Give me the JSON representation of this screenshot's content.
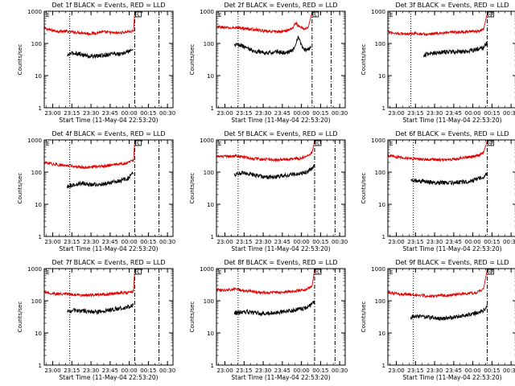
{
  "figure": {
    "background": "#ffffff",
    "axis_color": "#000000",
    "events_color": "#000000",
    "lld_color": "#e00000"
  },
  "chart_data": [
    {
      "type": "line",
      "panel": 1,
      "title": "Det 1f BLACK = Events, RED = LLD",
      "xlabel": "Start Time (11-May-04 22:53:20)",
      "ylabel": "Counts/sec",
      "x_ticks": [
        "23:00",
        "23:15",
        "23:30",
        "23:45",
        "00:00",
        "00:15",
        "00:30"
      ],
      "x_tick_minutes": [
        6.67,
        21.67,
        36.67,
        51.67,
        66.67,
        81.67,
        96.67
      ],
      "y_ticks": [
        "1",
        "10",
        "100",
        "1000"
      ],
      "y_scale": "log",
      "ylim": [
        1,
        1000
      ],
      "xlim_minutes": [
        0,
        101
      ],
      "series": [
        {
          "role": "LLD",
          "color": "#e00000",
          "x": [
            0,
            5,
            10,
            15,
            20,
            25,
            30,
            35,
            40,
            45,
            50,
            55,
            60,
            65,
            70,
            71
          ],
          "y": [
            300,
            260,
            240,
            240,
            230,
            220,
            215,
            200,
            210,
            230,
            220,
            210,
            215,
            230,
            240,
            950
          ]
        },
        {
          "role": "Events",
          "color": "#000000",
          "x": [
            18,
            20,
            25,
            30,
            35,
            40,
            45,
            50,
            55,
            60,
            65,
            70
          ],
          "y": [
            40,
            48,
            50,
            45,
            40,
            40,
            42,
            45,
            50,
            45,
            55,
            65
          ]
        }
      ],
      "markers": {
        "dotted_minutes": [
          20
        ],
        "dashdot_minutes": [
          71,
          90
        ],
        "bracket_labels": [
          "E",
          "S"
        ]
      }
    },
    {
      "type": "line",
      "panel": 2,
      "title": "Det 2f BLACK = Events, RED = LLD",
      "xlabel": "Start Time (11-May-04 22:53:20)",
      "ylabel": "Counts/sec",
      "x_ticks": [
        "23:00",
        "23:15",
        "23:30",
        "23:45",
        "00:00",
        "00:15",
        "00:30"
      ],
      "x_tick_minutes": [
        6.67,
        21.67,
        36.67,
        51.67,
        66.67,
        81.67,
        96.67
      ],
      "y_ticks": [
        "1",
        "10",
        "100",
        "1000"
      ],
      "y_scale": "log",
      "ylim": [
        1,
        1000
      ],
      "xlim_minutes": [
        0,
        101
      ],
      "series": [
        {
          "role": "LLD",
          "color": "#e00000",
          "x": [
            0,
            5,
            10,
            15,
            20,
            25,
            30,
            35,
            40,
            45,
            50,
            55,
            60,
            62,
            65,
            68,
            70,
            72,
            75
          ],
          "y": [
            320,
            320,
            300,
            310,
            300,
            280,
            270,
            250,
            230,
            240,
            230,
            250,
            300,
            450,
            320,
            300,
            280,
            320,
            900
          ]
        },
        {
          "role": "Events",
          "color": "#000000",
          "x": [
            14,
            16,
            20,
            25,
            30,
            35,
            40,
            45,
            50,
            55,
            60,
            62,
            64,
            66,
            68,
            70,
            72,
            74
          ],
          "y": [
            90,
            95,
            85,
            70,
            55,
            55,
            50,
            55,
            55,
            50,
            60,
            90,
            150,
            100,
            70,
            60,
            65,
            80
          ]
        }
      ],
      "markers": {
        "dotted_minutes": [
          17
        ],
        "dashdot_minutes": [
          75,
          90
        ],
        "bracket_labels": [
          "E",
          "S"
        ]
      }
    },
    {
      "type": "line",
      "panel": 3,
      "title": "Det 3f BLACK = Events, RED = LLD",
      "xlabel": "Start Time (11-May-04 22:53:20)",
      "ylabel": "Counts/sec",
      "x_ticks": [
        "23:00",
        "23:15",
        "23:30",
        "23:45",
        "00:00",
        "00:15",
        "00:30"
      ],
      "x_tick_minutes": [
        6.67,
        21.67,
        36.67,
        51.67,
        66.67,
        81.67,
        96.67
      ],
      "y_ticks": [
        "1",
        "10",
        "100",
        "1000"
      ],
      "y_scale": "log",
      "ylim": [
        1,
        1000
      ],
      "xlim_minutes": [
        0,
        101
      ],
      "series": [
        {
          "role": "LLD",
          "color": "#e00000",
          "x": [
            0,
            5,
            10,
            15,
            20,
            25,
            30,
            35,
            40,
            45,
            50,
            55,
            60,
            65,
            70,
            75,
            78
          ],
          "y": [
            230,
            210,
            200,
            200,
            210,
            200,
            190,
            200,
            210,
            210,
            220,
            220,
            230,
            240,
            240,
            260,
            900
          ]
        },
        {
          "role": "Events",
          "color": "#000000",
          "x": [
            28,
            30,
            35,
            40,
            45,
            50,
            55,
            60,
            65,
            70,
            75,
            78
          ],
          "y": [
            40,
            45,
            50,
            52,
            55,
            55,
            55,
            55,
            60,
            65,
            75,
            110
          ]
        }
      ],
      "markers": {
        "dotted_minutes": [
          18
        ],
        "dashdot_minutes": [
          78
        ],
        "bracket_labels": [
          "E",
          "S"
        ]
      }
    },
    {
      "type": "line",
      "panel": 4,
      "title": "Det 4f BLACK = Events, RED = LLD",
      "xlabel": "Start Time (11-May-04 22:53:20)",
      "ylabel": "Counts/sec",
      "x_ticks": [
        "23:00",
        "23:15",
        "23:30",
        "23:45",
        "00:00",
        "00:15",
        "00:30"
      ],
      "x_tick_minutes": [
        6.67,
        21.67,
        36.67,
        51.67,
        66.67,
        81.67,
        96.67
      ],
      "y_ticks": [
        "1",
        "10",
        "100",
        "1000"
      ],
      "y_scale": "log",
      "ylim": [
        1,
        1000
      ],
      "xlim_minutes": [
        0,
        101
      ],
      "series": [
        {
          "role": "LLD",
          "color": "#e00000",
          "x": [
            0,
            5,
            10,
            15,
            20,
            25,
            30,
            35,
            40,
            45,
            50,
            55,
            60,
            65,
            70,
            71
          ],
          "y": [
            200,
            180,
            170,
            160,
            160,
            150,
            140,
            140,
            150,
            150,
            160,
            170,
            180,
            190,
            230,
            950
          ]
        },
        {
          "role": "Events",
          "color": "#000000",
          "x": [
            18,
            20,
            25,
            30,
            35,
            40,
            45,
            50,
            55,
            60,
            65,
            70
          ],
          "y": [
            35,
            38,
            42,
            45,
            42,
            40,
            42,
            45,
            50,
            55,
            60,
            90
          ]
        }
      ],
      "markers": {
        "dotted_minutes": [
          20
        ],
        "dashdot_minutes": [
          71,
          90
        ],
        "bracket_labels": [
          "E",
          "S"
        ]
      }
    },
    {
      "type": "line",
      "panel": 5,
      "title": "Det 5f BLACK = Events, RED = LLD",
      "xlabel": "Start Time (11-May-04 22:53:20)",
      "ylabel": "Counts/sec",
      "x_ticks": [
        "23:00",
        "23:15",
        "23:30",
        "23:45",
        "00:00",
        "00:15",
        "00:30"
      ],
      "x_tick_minutes": [
        6.67,
        21.67,
        36.67,
        51.67,
        66.67,
        81.67,
        96.67
      ],
      "y_ticks": [
        "1",
        "10",
        "100",
        "1000"
      ],
      "y_scale": "log",
      "ylim": [
        1,
        1000
      ],
      "xlim_minutes": [
        0,
        101
      ],
      "series": [
        {
          "role": "LLD",
          "color": "#e00000",
          "x": [
            0,
            5,
            10,
            15,
            20,
            25,
            30,
            35,
            40,
            45,
            50,
            55,
            60,
            65,
            70,
            75,
            77
          ],
          "y": [
            320,
            300,
            310,
            330,
            300,
            280,
            260,
            250,
            250,
            240,
            240,
            250,
            260,
            270,
            290,
            400,
            950
          ]
        },
        {
          "role": "Events",
          "color": "#000000",
          "x": [
            14,
            16,
            20,
            25,
            30,
            35,
            40,
            45,
            50,
            55,
            60,
            65,
            70,
            75,
            77
          ],
          "y": [
            80,
            85,
            95,
            90,
            80,
            75,
            70,
            70,
            75,
            80,
            85,
            90,
            100,
            130,
            160
          ]
        }
      ],
      "markers": {
        "dotted_minutes": [
          17
        ],
        "dashdot_minutes": [
          77,
          93
        ],
        "bracket_labels": [
          "E",
          "S"
        ]
      }
    },
    {
      "type": "line",
      "panel": 6,
      "title": "Det 6f BLACK = Events, RED = LLD",
      "xlabel": "Start Time (11-May-04 22:53:20)",
      "ylabel": "Counts/sec",
      "x_ticks": [
        "23:00",
        "23:15",
        "23:30",
        "23:45",
        "00:00",
        "00:15",
        "00:30"
      ],
      "x_tick_minutes": [
        6.67,
        21.67,
        36.67,
        51.67,
        66.67,
        81.67,
        96.67
      ],
      "y_ticks": [
        "1",
        "10",
        "100",
        "1000"
      ],
      "y_scale": "log",
      "ylim": [
        1,
        1000
      ],
      "xlim_minutes": [
        0,
        101
      ],
      "series": [
        {
          "role": "LLD",
          "color": "#e00000",
          "x": [
            0,
            5,
            10,
            15,
            20,
            25,
            30,
            35,
            40,
            45,
            50,
            55,
            60,
            65,
            70,
            75,
            78
          ],
          "y": [
            330,
            300,
            280,
            270,
            260,
            250,
            250,
            250,
            240,
            240,
            250,
            260,
            280,
            300,
            320,
            400,
            950
          ]
        },
        {
          "role": "Events",
          "color": "#000000",
          "x": [
            18,
            20,
            25,
            30,
            35,
            40,
            45,
            50,
            55,
            60,
            65,
            70,
            75,
            78
          ],
          "y": [
            55,
            55,
            52,
            50,
            48,
            47,
            46,
            47,
            48,
            50,
            52,
            60,
            70,
            90
          ]
        }
      ],
      "markers": {
        "dotted_minutes": [
          20
        ],
        "dashdot_minutes": [
          78
        ],
        "bracket_labels": [
          "E",
          "S"
        ]
      }
    },
    {
      "type": "line",
      "panel": 7,
      "title": "Det 7f BLACK = Events, RED = LLD",
      "xlabel": "Start Time (11-May-04 22:53:20)",
      "ylabel": "Counts/sec",
      "x_ticks": [
        "23:00",
        "23:15",
        "23:30",
        "23:45",
        "00:00",
        "00:15",
        "00:30"
      ],
      "x_tick_minutes": [
        6.67,
        21.67,
        36.67,
        51.67,
        66.67,
        81.67,
        96.67
      ],
      "y_ticks": [
        "1",
        "10",
        "100",
        "1000"
      ],
      "y_scale": "log",
      "ylim": [
        1,
        1000
      ],
      "xlim_minutes": [
        0,
        101
      ],
      "series": [
        {
          "role": "LLD",
          "color": "#e00000",
          "x": [
            0,
            5,
            10,
            15,
            20,
            25,
            30,
            35,
            40,
            45,
            50,
            55,
            60,
            65,
            70,
            71
          ],
          "y": [
            180,
            170,
            165,
            165,
            160,
            155,
            150,
            150,
            155,
            160,
            160,
            170,
            175,
            180,
            200,
            950
          ]
        },
        {
          "role": "Events",
          "color": "#000000",
          "x": [
            18,
            20,
            25,
            30,
            35,
            40,
            45,
            50,
            55,
            60,
            65,
            70
          ],
          "y": [
            45,
            48,
            50,
            48,
            46,
            45,
            47,
            50,
            55,
            58,
            62,
            75
          ]
        }
      ],
      "markers": {
        "dotted_minutes": [
          20
        ],
        "dashdot_minutes": [
          71,
          90
        ],
        "bracket_labels": [
          "E",
          "S"
        ]
      }
    },
    {
      "type": "line",
      "panel": 8,
      "title": "Det 8f BLACK = Events, RED = LLD",
      "xlabel": "Start Time (11-May-04 22:53:20)",
      "ylabel": "Counts/sec",
      "x_ticks": [
        "23:00",
        "23:15",
        "23:30",
        "23:45",
        "00:00",
        "00:15",
        "00:30"
      ],
      "x_tick_minutes": [
        6.67,
        21.67,
        36.67,
        51.67,
        66.67,
        81.67,
        96.67
      ],
      "y_ticks": [
        "1",
        "10",
        "100",
        "1000"
      ],
      "y_scale": "log",
      "ylim": [
        1,
        1000
      ],
      "xlim_minutes": [
        0,
        101
      ],
      "series": [
        {
          "role": "LLD",
          "color": "#e00000",
          "x": [
            0,
            5,
            10,
            15,
            20,
            25,
            30,
            35,
            40,
            45,
            50,
            55,
            60,
            65,
            70,
            75,
            77
          ],
          "y": [
            220,
            210,
            220,
            230,
            210,
            200,
            190,
            180,
            180,
            180,
            180,
            190,
            200,
            210,
            220,
            280,
            950
          ]
        },
        {
          "role": "Events",
          "color": "#000000",
          "x": [
            14,
            16,
            20,
            25,
            30,
            35,
            40,
            45,
            50,
            55,
            60,
            65,
            70,
            75,
            77
          ],
          "y": [
            40,
            42,
            45,
            45,
            42,
            40,
            40,
            42,
            45,
            48,
            50,
            55,
            60,
            75,
            95
          ]
        }
      ],
      "markers": {
        "dotted_minutes": [
          17
        ],
        "dashdot_minutes": [
          77,
          93
        ],
        "bracket_labels": [
          "E",
          "S"
        ]
      }
    },
    {
      "type": "line",
      "panel": 9,
      "title": "Det 9f BLACK = Events, RED = LLD",
      "xlabel": "Start Time (11-May-04 22:53:20)",
      "ylabel": "Counts/sec",
      "x_ticks": [
        "23:00",
        "23:15",
        "23:30",
        "23:45",
        "00:00",
        "00:15",
        "00:30"
      ],
      "x_tick_minutes": [
        6.67,
        21.67,
        36.67,
        51.67,
        66.67,
        81.67,
        96.67
      ],
      "y_ticks": [
        "1",
        "10",
        "100",
        "1000"
      ],
      "y_scale": "log",
      "ylim": [
        1,
        1000
      ],
      "xlim_minutes": [
        0,
        101
      ],
      "series": [
        {
          "role": "LLD",
          "color": "#e00000",
          "x": [
            0,
            5,
            10,
            15,
            20,
            25,
            30,
            35,
            40,
            45,
            50,
            55,
            60,
            65,
            70,
            75,
            78
          ],
          "y": [
            180,
            170,
            160,
            160,
            150,
            150,
            140,
            140,
            145,
            150,
            150,
            160,
            165,
            170,
            180,
            230,
            950
          ]
        },
        {
          "role": "Events",
          "color": "#000000",
          "x": [
            18,
            20,
            25,
            30,
            35,
            40,
            45,
            50,
            55,
            60,
            65,
            70,
            75,
            78
          ],
          "y": [
            30,
            32,
            33,
            32,
            30,
            28,
            28,
            30,
            32,
            35,
            38,
            42,
            50,
            70
          ]
        }
      ],
      "markers": {
        "dotted_minutes": [
          20
        ],
        "dashdot_minutes": [
          78
        ],
        "bracket_labels": [
          "E",
          "S"
        ]
      }
    }
  ]
}
